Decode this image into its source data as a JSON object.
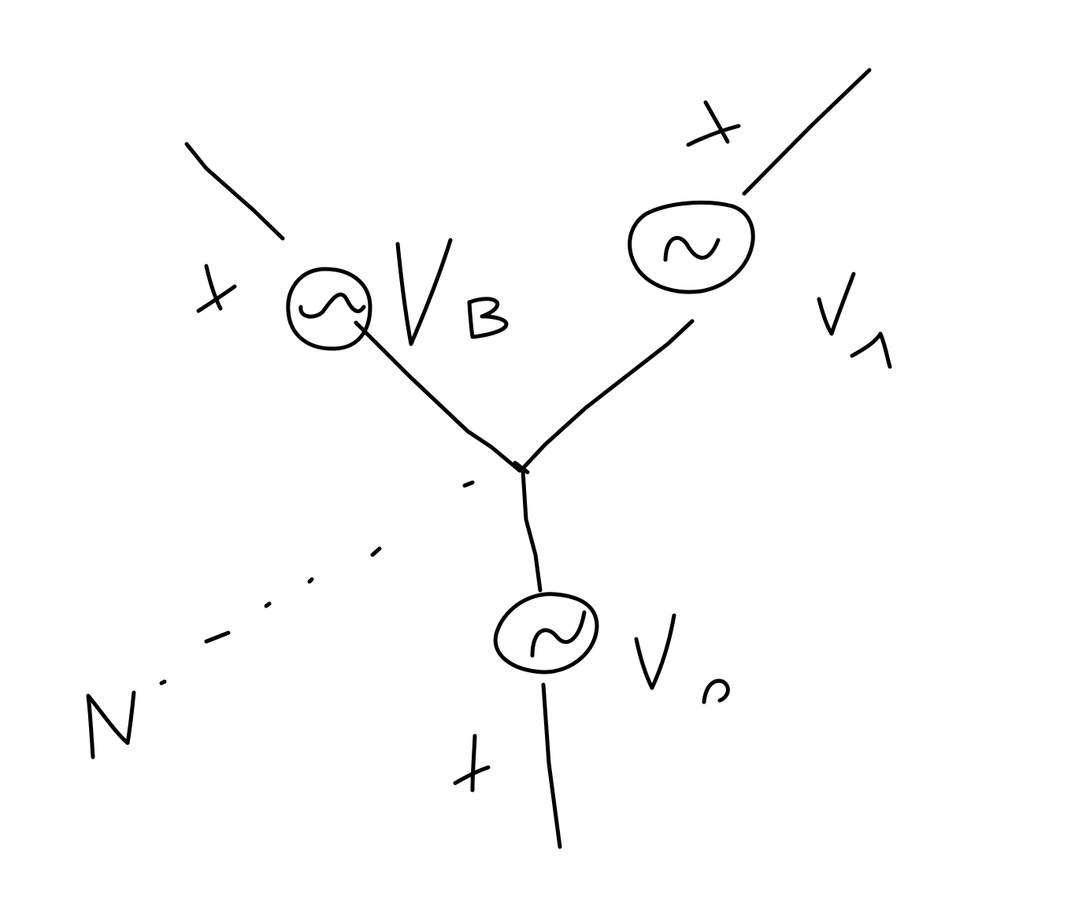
{
  "diagram": {
    "type": "hand-drawn three-phase star (wye) source",
    "ink_color": "#000000",
    "background": "#ffffff",
    "sources": [
      {
        "id": "A",
        "label_letter": "V",
        "label_sub": "A",
        "polarity": "+",
        "symbol": "ac-source-icon"
      },
      {
        "id": "B",
        "label_letter": "V",
        "label_sub": "B",
        "polarity": "+",
        "symbol": "ac-source-icon"
      },
      {
        "id": "C",
        "label_letter": "V",
        "label_sub": "C",
        "polarity": "+",
        "symbol": "ac-source-icon"
      }
    ],
    "neutral_label": "N"
  }
}
